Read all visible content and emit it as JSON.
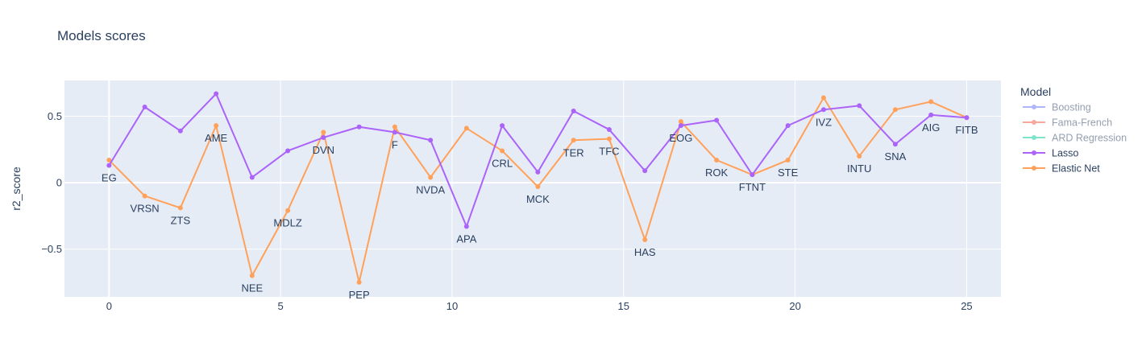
{
  "chart_data": {
    "type": "line",
    "title": "Models scores",
    "xlabel": "",
    "ylabel": "r2_score",
    "xlim": [
      -1.3,
      26.0
    ],
    "ylim": [
      -0.86,
      0.77
    ],
    "x_ticks": [
      0,
      5,
      10,
      15,
      20,
      25
    ],
    "y_ticks": [
      -0.5,
      0,
      0.5
    ],
    "y_tick_labels": [
      "−0.5",
      "0",
      "0.5"
    ],
    "grid": true,
    "legend": {
      "title": "Model",
      "placement": "right",
      "entries": [
        {
          "name": "Boosting",
          "color": "#636efa",
          "visible": false
        },
        {
          "name": "Fama-French",
          "color": "#ef553b",
          "visible": false
        },
        {
          "name": "ARD Regression",
          "color": "#00cc96",
          "visible": false
        },
        {
          "name": "Lasso",
          "color": "#ab63fa",
          "visible": true
        },
        {
          "name": "Elastic Net",
          "color": "#ffa15a",
          "visible": true
        }
      ]
    },
    "x": [
      0,
      1.04,
      2.08,
      3.12,
      4.17,
      5.21,
      6.25,
      7.29,
      8.33,
      9.37,
      10.42,
      11.46,
      12.5,
      13.54,
      14.58,
      15.62,
      16.67,
      17.71,
      18.75,
      19.79,
      20.83,
      21.87,
      22.92,
      23.96,
      25.0
    ],
    "labels": [
      "EG",
      "VRSN",
      "ZTS",
      "AME",
      "NEE",
      "MDLZ",
      "DVN",
      "PEP",
      "F",
      "NVDA",
      "APA",
      "CRL",
      "MCK",
      "TER",
      "TFC",
      "HAS",
      "EOG",
      "ROK",
      "FTNT",
      "STE",
      "IVZ",
      "INTU",
      "SNA",
      "AIG",
      "FITB"
    ],
    "series": [
      {
        "name": "Lasso",
        "color": "#ab63fa",
        "values": [
          0.13,
          0.57,
          0.39,
          0.67,
          0.04,
          0.24,
          0.34,
          0.42,
          0.38,
          0.32,
          -0.33,
          0.43,
          0.08,
          0.54,
          0.4,
          0.09,
          0.43,
          0.47,
          0.06,
          0.43,
          0.55,
          0.58,
          0.29,
          0.51,
          0.49
        ]
      },
      {
        "name": "Elastic Net",
        "color": "#ffa15a",
        "values": [
          0.17,
          -0.1,
          -0.19,
          0.43,
          -0.7,
          -0.21,
          0.38,
          -0.75,
          0.42,
          0.04,
          0.41,
          0.24,
          -0.03,
          0.32,
          0.33,
          -0.43,
          0.46,
          0.17,
          0.06,
          0.17,
          0.64,
          0.2,
          0.55,
          0.61,
          0.49
        ]
      }
    ]
  }
}
